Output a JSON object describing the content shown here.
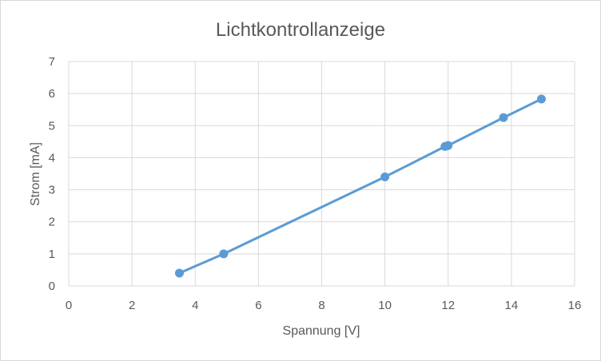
{
  "chart_data": {
    "type": "scatter",
    "title": "Lichtkontrollanzeige",
    "xlabel": "Spannung [V]",
    "ylabel": "Strom [mA]",
    "xlim": [
      0,
      16
    ],
    "ylim": [
      0,
      7
    ],
    "xticks": [
      0,
      2,
      4,
      6,
      8,
      10,
      12,
      14,
      16
    ],
    "yticks": [
      0,
      1,
      2,
      3,
      4,
      5,
      6,
      7
    ],
    "grid": true,
    "legend": "none",
    "series": [
      {
        "color": "#5b9bd5",
        "lines": true,
        "x": [
          3.5,
          4.9,
          10.0,
          11.9,
          12.0,
          13.75,
          14.95
        ],
        "y": [
          0.4,
          1.0,
          3.4,
          4.35,
          4.38,
          5.25,
          5.83
        ]
      }
    ]
  }
}
